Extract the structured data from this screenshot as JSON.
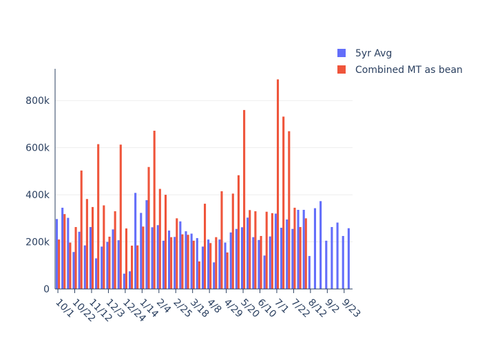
{
  "chart_data": {
    "type": "bar",
    "x_tick_labels": [
      "10/1",
      "10/22",
      "11/12",
      "12/3",
      "12/24",
      "1/14",
      "2/4",
      "2/25",
      "3/18",
      "4/8",
      "4/29",
      "5/20",
      "6/10",
      "7/1",
      "7/22",
      "8/12",
      "9/2",
      "9/23"
    ],
    "y_tick_labels": [
      "0",
      "200k",
      "400k",
      "600k",
      "800k"
    ],
    "y_ticks": [
      0,
      200000,
      400000,
      600000,
      800000
    ],
    "ylim": [
      0,
      935000
    ],
    "grid": true,
    "legend_position": "top-right",
    "series": [
      {
        "name": "5yr Avg",
        "color": "#636efa",
        "values": [
          297000,
          345000,
          302000,
          157000,
          243000,
          185000,
          263000,
          130000,
          180000,
          200000,
          253000,
          207000,
          65000,
          75000,
          408000,
          323000,
          377000,
          262000,
          271000,
          205000,
          248000,
          221000,
          287000,
          245000,
          235000,
          216000,
          180000,
          210000,
          113000,
          210000,
          197000,
          240000,
          255000,
          262000,
          303000,
          220000,
          208000,
          142000,
          223000,
          320000,
          260000,
          295000,
          255000,
          336000,
          336000,
          140000,
          343000,
          373000,
          205000,
          263000,
          282000,
          225000,
          258000
        ]
      },
      {
        "name": "Combined MT as bean",
        "color": "#ef553b",
        "values": [
          210000,
          318000,
          197000,
          263000,
          503000,
          382000,
          348000,
          615000,
          355000,
          222000,
          330000,
          613000,
          257000,
          184000,
          185000,
          265000,
          518000,
          672000,
          425000,
          400000,
          220000,
          300000,
          232000,
          230000,
          205000,
          117000,
          362000,
          195000,
          220000,
          415000,
          155000,
          405000,
          483000,
          760000,
          335000,
          330000,
          225000,
          328000,
          322000,
          890000,
          732000,
          670000,
          345000,
          263000,
          300000,
          null,
          null,
          null,
          null,
          null,
          null,
          null,
          null
        ]
      }
    ]
  }
}
